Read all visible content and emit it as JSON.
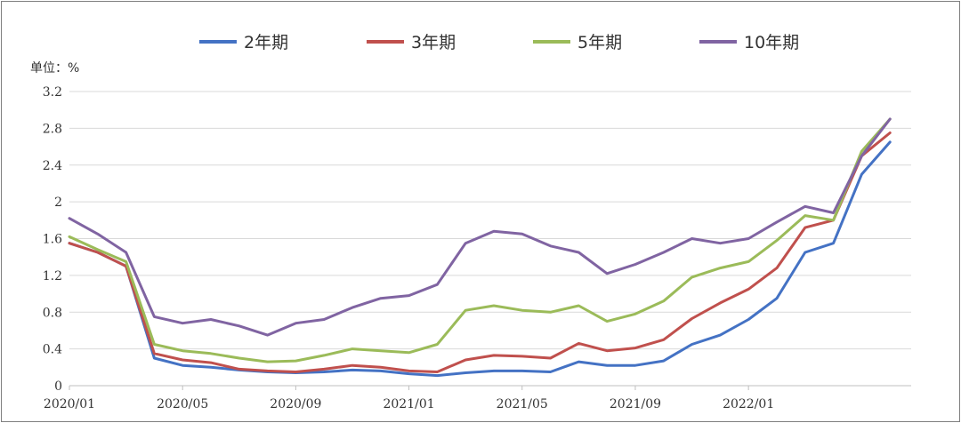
{
  "chart_data": {
    "type": "line",
    "unit_label": "单位：%",
    "ylim": [
      0,
      3.2
    ],
    "yticks": [
      0,
      0.4,
      0.8,
      1.2,
      1.6,
      2,
      2.4,
      2.8,
      3.2
    ],
    "ytick_labels": [
      "0",
      "0.4",
      "0.8",
      "1.2",
      "1.6",
      "2",
      "2.4",
      "2.8",
      "3.2"
    ],
    "xtick_labels": [
      "2020/01",
      "2020/05",
      "2020/09",
      "2021/01",
      "2021/05",
      "2021/09",
      "2022/01"
    ],
    "xlim": [
      "2020-01",
      "2022-06"
    ],
    "grid": true,
    "legend_position": "top",
    "x": [
      "2020-01",
      "2020-02",
      "2020-03",
      "2020-04",
      "2020-05",
      "2020-06",
      "2020-07",
      "2020-08",
      "2020-09",
      "2020-10",
      "2020-11",
      "2020-12",
      "2021-01",
      "2021-02",
      "2021-03",
      "2021-04",
      "2021-05",
      "2021-06",
      "2021-07",
      "2021-08",
      "2021-09",
      "2021-10",
      "2021-11",
      "2021-12",
      "2022-01",
      "2022-02",
      "2022-03",
      "2022-04",
      "2022-05",
      "2022-06"
    ],
    "series": [
      {
        "name": "2年期",
        "color": "#4472c4",
        "values": [
          1.55,
          1.45,
          1.3,
          0.3,
          0.22,
          0.2,
          0.17,
          0.15,
          0.14,
          0.15,
          0.17,
          0.16,
          0.13,
          0.11,
          0.14,
          0.16,
          0.16,
          0.15,
          0.26,
          0.22,
          0.22,
          0.27,
          0.45,
          0.55,
          0.72,
          0.95,
          1.45,
          1.55,
          2.3,
          2.65
        ]
      },
      {
        "name": "3年期",
        "color": "#c0504d",
        "values": [
          1.55,
          1.45,
          1.3,
          0.35,
          0.28,
          0.25,
          0.18,
          0.16,
          0.15,
          0.18,
          0.22,
          0.2,
          0.16,
          0.15,
          0.28,
          0.33,
          0.32,
          0.3,
          0.46,
          0.38,
          0.41,
          0.5,
          0.73,
          0.9,
          1.05,
          1.28,
          1.72,
          1.8,
          2.5,
          2.75
        ]
      },
      {
        "name": "5年期",
        "color": "#9bbb59",
        "values": [
          1.62,
          1.48,
          1.35,
          0.45,
          0.38,
          0.35,
          0.3,
          0.26,
          0.27,
          0.33,
          0.4,
          0.38,
          0.36,
          0.45,
          0.82,
          0.87,
          0.82,
          0.8,
          0.87,
          0.7,
          0.78,
          0.92,
          1.18,
          1.28,
          1.35,
          1.58,
          1.85,
          1.8,
          2.55,
          2.9
        ]
      },
      {
        "name": "10年期",
        "color": "#8064a2",
        "values": [
          1.82,
          1.65,
          1.45,
          0.75,
          0.68,
          0.72,
          0.65,
          0.55,
          0.68,
          0.72,
          0.85,
          0.95,
          0.98,
          1.1,
          1.55,
          1.68,
          1.65,
          1.52,
          1.45,
          1.22,
          1.32,
          1.45,
          1.6,
          1.55,
          1.6,
          1.78,
          1.95,
          1.88,
          2.5,
          2.9
        ]
      }
    ]
  }
}
